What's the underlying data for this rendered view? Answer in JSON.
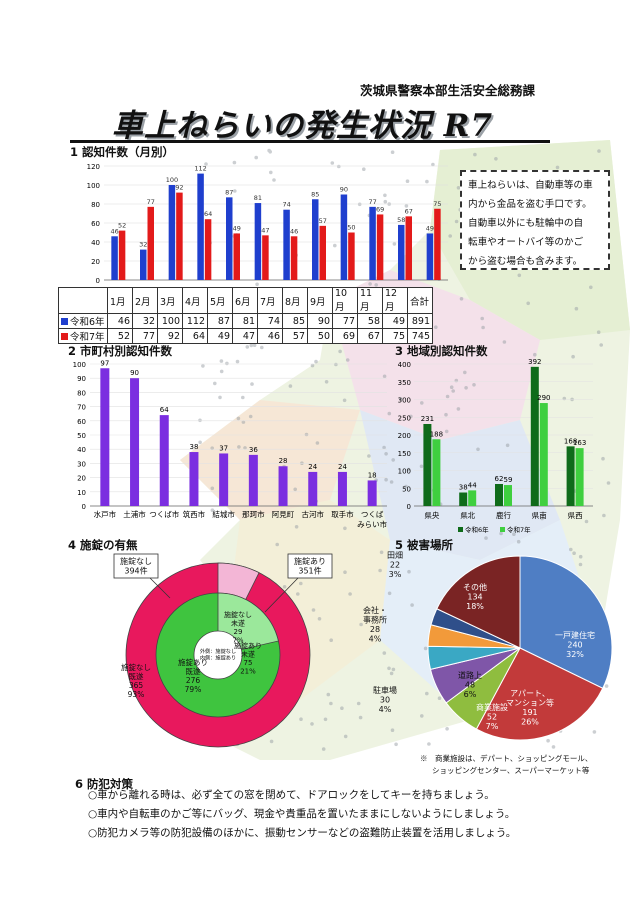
{
  "header": {
    "department": "茨城県警察本部生活安全総務課",
    "title": "車上ねらいの発生状況 R7"
  },
  "note": {
    "lines": [
      "車上ねらいは、自動車等の車",
      "内から金品を盗む手口です。",
      "自動車以外にも駐輪中の自",
      "転車やオートバイ等のかご",
      "から盗む場合も含みます。"
    ]
  },
  "colors": {
    "r6": "#1f3fce",
    "r7": "#e31a1a",
    "muni": "#7b2ee0",
    "region_r6": "#0f6b1a",
    "region_r7": "#3fcf3f",
    "lock_none": "#e8185d",
    "lock_yes": "#3fc43f"
  },
  "chart_data": [
    {
      "id": "monthly",
      "type": "bar",
      "title": "1 認知件数（月別）",
      "categories": [
        "1月",
        "2月",
        "3月",
        "4月",
        "5月",
        "6月",
        "7月",
        "8月",
        "9月",
        "10月",
        "11月",
        "12月"
      ],
      "total_label": "合計",
      "ylim": [
        0,
        120
      ],
      "yticks": [
        0,
        20,
        40,
        60,
        80,
        100,
        120
      ],
      "series": [
        {
          "name": "令和6年",
          "values": [
            46,
            32,
            100,
            112,
            87,
            81,
            74,
            85,
            90,
            77,
            58,
            49
          ],
          "total": 891
        },
        {
          "name": "令和7年",
          "values": [
            52,
            77,
            92,
            64,
            49,
            47,
            46,
            57,
            50,
            69,
            67,
            75
          ],
          "total": 745
        }
      ]
    },
    {
      "id": "municipality",
      "type": "bar",
      "title": "2 市町村別認知件数",
      "categories": [
        "水戸市",
        "土浦市",
        "つくば市",
        "筑西市",
        "結城市",
        "那珂市",
        "阿見町",
        "古河市",
        "取手市",
        "つくばみらい市"
      ],
      "tick_labels": [
        [
          "水戸市"
        ],
        [
          "土浦市"
        ],
        [
          "つくば市"
        ],
        [
          "筑西市"
        ],
        [
          "結城市"
        ],
        [
          "那珂市"
        ],
        [
          "阿見町"
        ],
        [
          "古河市"
        ],
        [
          "取手市"
        ],
        [
          "つくば",
          "みらい市"
        ]
      ],
      "values": [
        97,
        90,
        64,
        38,
        37,
        36,
        28,
        24,
        24,
        18
      ],
      "ylim": [
        0,
        100
      ],
      "yticks": [
        0,
        10,
        20,
        30,
        40,
        50,
        60,
        70,
        80,
        90,
        100
      ]
    },
    {
      "id": "region",
      "type": "bar",
      "title": "3 地域別認知件数",
      "categories": [
        "県央",
        "県北",
        "鹿行",
        "県南",
        "県西"
      ],
      "ylim": [
        0,
        400
      ],
      "yticks": [
        0,
        50,
        100,
        150,
        200,
        250,
        300,
        350,
        400
      ],
      "legend": "bottom",
      "series": [
        {
          "name": "令和6年",
          "values": [
            231,
            38,
            62,
            392,
            168
          ]
        },
        {
          "name": "令和7年",
          "values": [
            188,
            44,
            59,
            290,
            163
          ]
        }
      ]
    },
    {
      "id": "lock",
      "type": "pie",
      "title": "4 施錠の有無",
      "outer": [
        {
          "label": "施錠なし",
          "count": "394件",
          "value": 394
        },
        {
          "label": "施錠あり",
          "count": "351件",
          "value": 351
        }
      ],
      "inner": [
        {
          "lines": [
            "施錠なし",
            "未遂",
            "29",
            "7%"
          ],
          "value": 29
        },
        {
          "lines": [
            "施錠あり",
            "未遂",
            "75",
            "21%"
          ],
          "value": 75
        },
        {
          "lines": [
            "施錠あり",
            "既遂",
            "276",
            "79%"
          ],
          "value": 276
        },
        {
          "lines": [
            "施錠なし",
            "既遂",
            "365",
            "93%"
          ],
          "value": 365
        }
      ],
      "center_lines": [
        "外側：施錠なし",
        "内側：施錠あり"
      ]
    },
    {
      "id": "place",
      "type": "pie",
      "title": "5 被害場所",
      "slices": [
        {
          "lines": [
            "一戸建住宅",
            "240",
            "32%"
          ],
          "value": 240,
          "color": "#4f7ec4"
        },
        {
          "lines": [
            "アパート、",
            "マンション等",
            "191",
            "26%"
          ],
          "value": 191,
          "color": "#c23a3a"
        },
        {
          "lines": [
            "商業施設",
            "52",
            "7%"
          ],
          "value": 52,
          "color": "#8fbd3f"
        },
        {
          "lines": [
            "道路上",
            "48",
            "6%"
          ],
          "value": 48,
          "color": "#7f56a8"
        },
        {
          "lines": [
            "駐車場",
            "30",
            "4%"
          ],
          "value": 30,
          "color": "#3aa8c4"
        },
        {
          "lines": [
            "会社・",
            "事務所",
            "28",
            "4%"
          ],
          "value": 28,
          "color": "#f29a3a"
        },
        {
          "lines": [
            "田畑",
            "22",
            "3%"
          ],
          "value": 22,
          "color": "#2f4f8a"
        },
        {
          "lines": [
            "その他",
            "134",
            "18%"
          ],
          "value": 134,
          "color": "#7a2424"
        }
      ],
      "footnote": [
        "※　商業施設は、デパート、ショッピングモール、",
        "ショッピングセンター、スーパーマーケット等"
      ]
    }
  ],
  "prevention": {
    "title": "6 防犯対策",
    "items": [
      "○車から離れる時は、必ず全ての窓を閉めて、ドアロックをしてキーを持ちましょう。",
      "○車内や自転車のかご等にバッグ、現金や貴重品を置いたままにしないようにしましょう。",
      "○防犯カメラ等の防犯設備のほかに、振動センサーなどの盗難防止装置を活用しましょう。"
    ]
  }
}
